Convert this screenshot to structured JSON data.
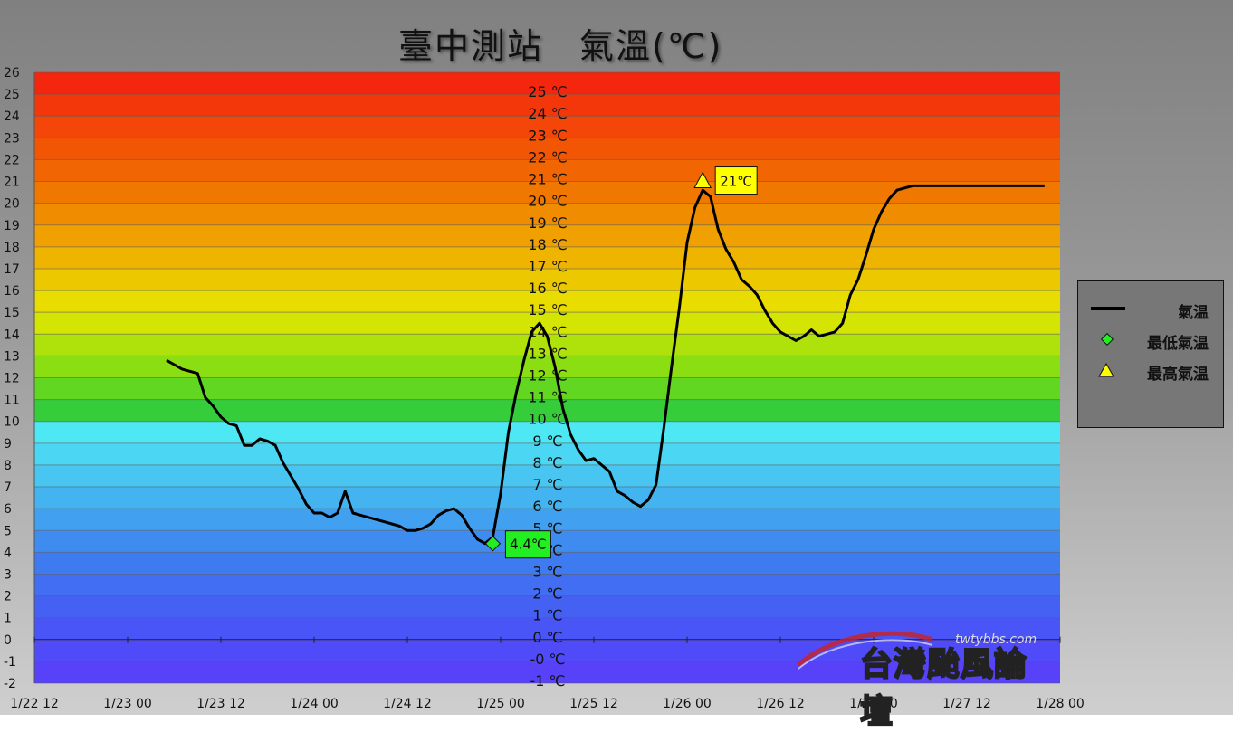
{
  "title": "臺中測站　氣溫(℃)",
  "legend": {
    "items": [
      {
        "label": "氣温",
        "symbol": "line-black"
      },
      {
        "label": "最低氣温",
        "symbol": "diamond-green"
      },
      {
        "label": "最高氣温",
        "symbol": "triangle-yellow"
      }
    ]
  },
  "watermark": {
    "url": "twtybbs.com",
    "text": "台灣颱風論壇"
  },
  "colors": {
    "min_marker": "#22ee22",
    "max_marker": "#ffff00",
    "line": "#000000"
  },
  "chart_data": {
    "type": "line",
    "title": "臺中測站　氣溫(℃)",
    "xlabel": "",
    "ylabel": "",
    "ylim": [
      -2,
      26
    ],
    "grid": true,
    "legend_position": "right",
    "x_ticks": [
      "1/22 12",
      "1/23 00",
      "1/23 12",
      "1/24 00",
      "1/24 12",
      "1/25 00",
      "1/25 12",
      "1/26 00",
      "1/26 12",
      "1/27 00",
      "1/27 12",
      "1/28 00"
    ],
    "y_ticks": [
      -2,
      -1,
      0,
      1,
      2,
      3,
      4,
      5,
      6,
      7,
      8,
      9,
      10,
      11,
      12,
      13,
      14,
      15,
      16,
      17,
      18,
      19,
      20,
      21,
      22,
      23,
      24,
      25,
      26
    ],
    "inner_celsius_labels": [
      "25 ℃",
      "24 ℃",
      "23 ℃",
      "22 ℃",
      "21 ℃",
      "20 ℃",
      "19 ℃",
      "18 ℃",
      "17 ℃",
      "16 ℃",
      "15 ℃",
      "14 ℃",
      "13 ℃",
      "12 ℃",
      "11 ℃",
      "10 ℃",
      "9 ℃",
      "8 ℃",
      "7 ℃",
      "6 ℃",
      "5 ℃",
      "4 ℃",
      "3 ℃",
      "2 ℃",
      "1 ℃",
      "0 ℃",
      "-0 ℃",
      "-1 ℃"
    ],
    "series": [
      {
        "name": "氣温",
        "x_hours": [
          17,
          18,
          19,
          20,
          21,
          22,
          23,
          24,
          25,
          26,
          27,
          28,
          29,
          30,
          31,
          32,
          33,
          34,
          35,
          36,
          37,
          38,
          39,
          40,
          41,
          42,
          43,
          44,
          45,
          46,
          47,
          48,
          49,
          50,
          51,
          52,
          53,
          54,
          55,
          56,
          57,
          58,
          59,
          60,
          61,
          62,
          63,
          64,
          65,
          66,
          67,
          68,
          69,
          70,
          71,
          72,
          73,
          74,
          75,
          76,
          77,
          78,
          79,
          80,
          81,
          82,
          83,
          84,
          85,
          86,
          87,
          88,
          89,
          90,
          91,
          92,
          93,
          94,
          95,
          96,
          97,
          98,
          99,
          100,
          101,
          102,
          103,
          104,
          105,
          106,
          107,
          108,
          109,
          110,
          111,
          112,
          113,
          114,
          115,
          116,
          117,
          118,
          119,
          120,
          121,
          122,
          123,
          124,
          125,
          126,
          127,
          128,
          129,
          130
        ],
        "values": [
          12.8,
          12.6,
          12.4,
          12.3,
          12.2,
          11.1,
          10.7,
          10.2,
          9.9,
          9.8,
          8.9,
          8.9,
          9.2,
          9.1,
          8.9,
          8.1,
          7.5,
          6.9,
          6.2,
          5.8,
          5.8,
          5.6,
          5.8,
          6.8,
          5.8,
          5.7,
          5.6,
          5.5,
          5.4,
          5.3,
          5.2,
          5.0,
          5.0,
          5.1,
          5.3,
          5.7,
          5.9,
          6.0,
          5.7,
          5.1,
          4.6,
          4.4,
          4.7,
          6.7,
          9.5,
          11.3,
          12.8,
          14.1,
          14.5,
          13.9,
          12.5,
          10.6,
          9.4,
          8.7,
          8.2,
          8.3,
          8.0,
          7.7,
          6.8,
          6.6,
          6.3,
          6.1,
          6.4,
          7.1,
          9.7,
          12.5,
          15.2,
          18.2,
          19.8,
          20.6,
          20.3,
          18.8,
          17.9,
          17.3,
          16.5,
          16.2,
          15.8,
          15.1,
          14.5,
          14.1,
          13.9,
          13.7,
          13.9,
          14.2,
          13.9,
          14.0,
          14.1,
          14.5,
          15.8,
          16.5,
          17.6,
          18.8,
          19.6,
          20.2,
          20.6,
          20.7,
          20.8,
          20.8,
          20.8,
          20.8,
          20.8,
          20.8,
          20.8,
          20.8,
          20.8,
          20.8,
          20.8,
          20.8,
          20.8,
          20.8,
          20.8,
          20.8,
          20.8,
          20.8
        ]
      }
    ],
    "min_point": {
      "x_hours": 59,
      "value": 4.4,
      "label": "4.4℃"
    },
    "max_point": {
      "x_hours": 86,
      "value": 21,
      "label": "21℃"
    }
  }
}
